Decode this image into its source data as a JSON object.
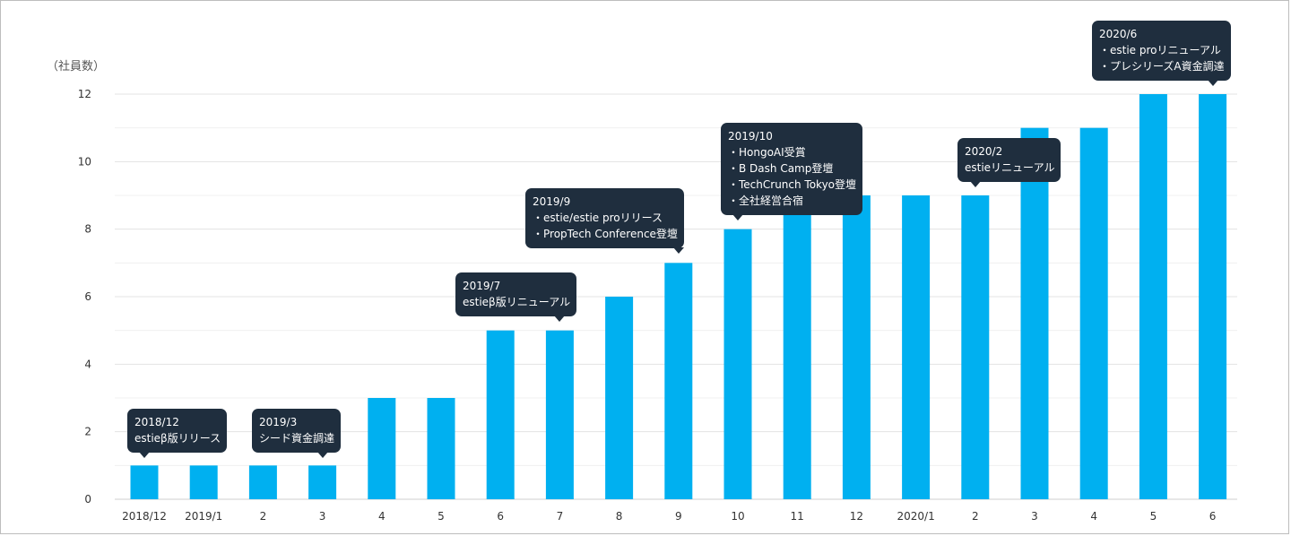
{
  "chart_data": {
    "type": "bar",
    "ylabel": "（社員数）",
    "ylim": [
      0,
      12
    ],
    "yticks": [
      0,
      2,
      4,
      6,
      8,
      10,
      12
    ],
    "grid": true,
    "bar_color": "#00b0f0",
    "categories": [
      "2018/12",
      "2019/1",
      "2",
      "3",
      "4",
      "5",
      "6",
      "7",
      "8",
      "9",
      "10",
      "11",
      "12",
      "2020/1",
      "2",
      "3",
      "4",
      "5",
      "6"
    ],
    "values": [
      1,
      1,
      1,
      1,
      3,
      3,
      5,
      5,
      6,
      7,
      8,
      9,
      9,
      9,
      9,
      11,
      11,
      12,
      12
    ],
    "annotations": [
      {
        "index": 0,
        "title": "2018/12",
        "lines": [
          "estieβ版リリース"
        ]
      },
      {
        "index": 3,
        "title": "2019/3",
        "lines": [
          "シード資金調達"
        ]
      },
      {
        "index": 7,
        "title": "2019/7",
        "lines": [
          "estieβ版リニューアル"
        ]
      },
      {
        "index": 9,
        "title": "2019/9",
        "lines": [
          "・estie/estie proリリース",
          "・PropTech Conference登壇"
        ]
      },
      {
        "index": 10,
        "title": "2019/10",
        "lines": [
          "・HongoAI受賞",
          "・B Dash Camp登壇",
          "・TechCrunch Tokyo登壇",
          "・全社経営合宿"
        ]
      },
      {
        "index": 14,
        "title": "2020/2",
        "lines": [
          "estieリニューアル"
        ]
      },
      {
        "index": 18,
        "title": "2020/6",
        "lines": [
          "・estie proリニューアル",
          "・プレシリーズA資金調達"
        ]
      }
    ]
  }
}
